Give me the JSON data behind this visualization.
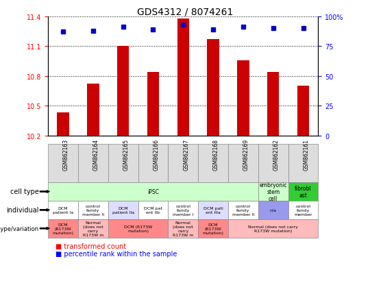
{
  "title": "GDS4312 / 8074261",
  "samples": [
    "GSM862163",
    "GSM862164",
    "GSM862165",
    "GSM862166",
    "GSM862167",
    "GSM862168",
    "GSM862169",
    "GSM862162",
    "GSM862161"
  ],
  "red_values": [
    10.43,
    10.72,
    11.1,
    10.84,
    11.38,
    11.17,
    10.96,
    10.84,
    10.7
  ],
  "blue_values": [
    87,
    88,
    91,
    89,
    93,
    89,
    91,
    90,
    90
  ],
  "ylim_left": [
    10.2,
    11.4
  ],
  "ylim_right": [
    0,
    100
  ],
  "yticks_left": [
    10.2,
    10.5,
    10.8,
    11.1,
    11.4
  ],
  "yticks_right": [
    0,
    25,
    50,
    75,
    100
  ],
  "ytick_labels_right": [
    "0",
    "25",
    "50",
    "75",
    "100%"
  ],
  "bar_color": "#cc0000",
  "dot_color": "#0000cc",
  "bar_bottom": 10.2,
  "legend_red": "transformed count",
  "legend_blue": "percentile rank within the sample"
}
